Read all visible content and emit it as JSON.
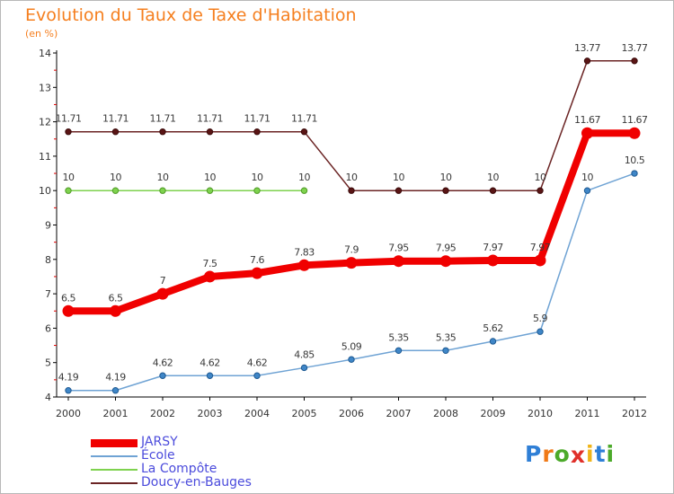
{
  "title": "Evolution du Taux de Taxe d'Habitation",
  "subtitle": "(en %)",
  "logo": {
    "letters": [
      "P",
      "r",
      "o",
      "x",
      "i",
      "t",
      "i"
    ],
    "colors": [
      "#2f7fd6",
      "#f07a18",
      "#4caa2a",
      "#e0302a",
      "#f0b418",
      "#2f7fd6",
      "#4caa2a"
    ]
  },
  "chart_data": {
    "type": "line",
    "title": "Evolution du Taux de Taxe d'Habitation",
    "ylabel": "(en %)",
    "xlabel": "",
    "ylim": [
      4,
      14
    ],
    "yticks": [
      4,
      5,
      6,
      7,
      8,
      9,
      10,
      11,
      12,
      13,
      14
    ],
    "grid": false,
    "legend_position": "bottom-left",
    "categories": [
      "2000",
      "2001",
      "2002",
      "2003",
      "2004",
      "2005",
      "2006",
      "2007",
      "2008",
      "2009",
      "2010",
      "2011",
      "2012"
    ],
    "series": [
      {
        "name": "Doucy-en-Bauges",
        "color": "#6b2424",
        "values": [
          11.71,
          11.71,
          11.71,
          11.71,
          11.71,
          11.71,
          10,
          10,
          10,
          10,
          10,
          13.77,
          13.77
        ],
        "labels": [
          "11.71",
          "11.71",
          "11.71",
          "11.71",
          "11.71",
          "11.71",
          "10",
          "10",
          "10",
          "10",
          "10",
          "13.77",
          "13.77"
        ]
      },
      {
        "name": "La Compôte",
        "color": "#7ed24e",
        "values": [
          10,
          10,
          10,
          10,
          10,
          10,
          null,
          null,
          null,
          null,
          null,
          null,
          null
        ],
        "labels": [
          "10",
          "10",
          "10",
          "10",
          "10",
          "10",
          "",
          "",
          "",
          "",
          "",
          "",
          ""
        ]
      },
      {
        "name": "École",
        "color": "#6fa3d4",
        "values": [
          4.19,
          4.19,
          4.62,
          4.62,
          4.62,
          4.85,
          5.09,
          5.35,
          5.35,
          5.62,
          5.9,
          10,
          10.5
        ],
        "labels": [
          "4.19",
          "4.19",
          "4.62",
          "4.62",
          "4.62",
          "4.85",
          "5.09",
          "5.35",
          "5.35",
          "5.62",
          "5.9",
          "10",
          "10.5"
        ]
      },
      {
        "name": "JARSY",
        "color": "#f00000",
        "values": [
          6.5,
          6.5,
          7,
          7.5,
          7.6,
          7.83,
          7.9,
          7.95,
          7.95,
          7.97,
          7.97,
          11.67,
          11.67
        ],
        "labels": [
          "6.5",
          "6.5",
          "7",
          "7.5",
          "7.6",
          "7.83",
          "7.9",
          "7.95",
          "7.95",
          "7.97",
          "7.97",
          "11.67",
          "11.67"
        ]
      }
    ],
    "legend_order": [
      "JARSY",
      "École",
      "La Compôte",
      "Doucy-en-Bauges"
    ]
  }
}
